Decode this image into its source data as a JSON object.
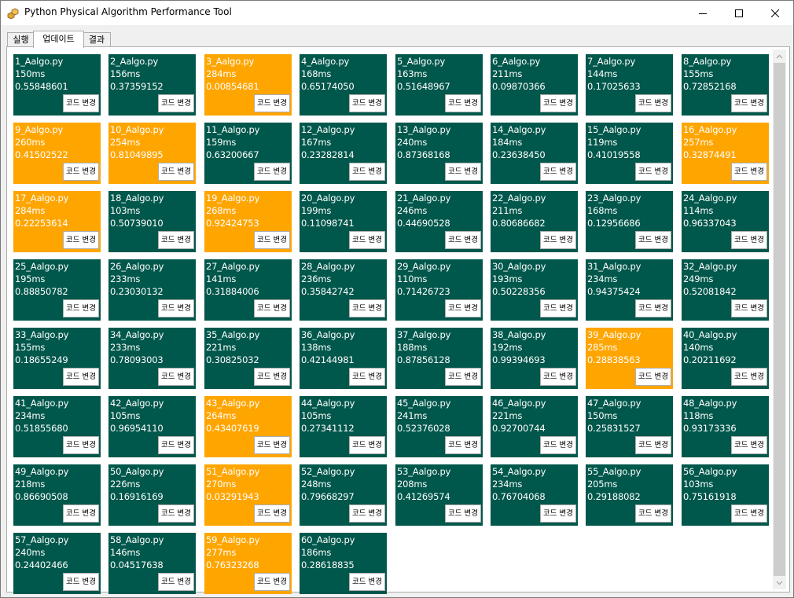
{
  "window": {
    "title": "Python Physical Algorithm Performance Tool"
  },
  "tabs": [
    {
      "label": "실행",
      "active": false
    },
    {
      "label": "업데이트",
      "active": true
    },
    {
      "label": "결과",
      "active": false
    }
  ],
  "colors": {
    "normal": "#00574b",
    "highlight": "#ffa500"
  },
  "button_label": "코드 변경",
  "cards": [
    {
      "name": "1_Aalgo.py",
      "time": "150ms",
      "score": "0.55848601",
      "highlight": false
    },
    {
      "name": "2_Aalgo.py",
      "time": "156ms",
      "score": "0.37359152",
      "highlight": false
    },
    {
      "name": "3_Aalgo.py",
      "time": "284ms",
      "score": "0.00854681",
      "highlight": true
    },
    {
      "name": "4_Aalgo.py",
      "time": "168ms",
      "score": "0.65174050",
      "highlight": false
    },
    {
      "name": "5_Aalgo.py",
      "time": "163ms",
      "score": "0.51648967",
      "highlight": false
    },
    {
      "name": "6_Aalgo.py",
      "time": "211ms",
      "score": "0.09870366",
      "highlight": false
    },
    {
      "name": "7_Aalgo.py",
      "time": "144ms",
      "score": "0.17025633",
      "highlight": false
    },
    {
      "name": "8_Aalgo.py",
      "time": "155ms",
      "score": "0.72852168",
      "highlight": false
    },
    {
      "name": "9_Aalgo.py",
      "time": "260ms",
      "score": "0.41502522",
      "highlight": true
    },
    {
      "name": "10_Aalgo.py",
      "time": "254ms",
      "score": "0.81049895",
      "highlight": true
    },
    {
      "name": "11_Aalgo.py",
      "time": "159ms",
      "score": "0.63200667",
      "highlight": false
    },
    {
      "name": "12_Aalgo.py",
      "time": "167ms",
      "score": "0.23282814",
      "highlight": false
    },
    {
      "name": "13_Aalgo.py",
      "time": "240ms",
      "score": "0.87368168",
      "highlight": false
    },
    {
      "name": "14_Aalgo.py",
      "time": "184ms",
      "score": "0.23638450",
      "highlight": false
    },
    {
      "name": "15_Aalgo.py",
      "time": "119ms",
      "score": "0.41019558",
      "highlight": false
    },
    {
      "name": "16_Aalgo.py",
      "time": "257ms",
      "score": "0.32874491",
      "highlight": true
    },
    {
      "name": "17_Aalgo.py",
      "time": "284ms",
      "score": "0.22253614",
      "highlight": true
    },
    {
      "name": "18_Aalgo.py",
      "time": "103ms",
      "score": "0.50739010",
      "highlight": false
    },
    {
      "name": "19_Aalgo.py",
      "time": "268ms",
      "score": "0.92424753",
      "highlight": true
    },
    {
      "name": "20_Aalgo.py",
      "time": "199ms",
      "score": "0.11098741",
      "highlight": false
    },
    {
      "name": "21_Aalgo.py",
      "time": "246ms",
      "score": "0.44690528",
      "highlight": false
    },
    {
      "name": "22_Aalgo.py",
      "time": "211ms",
      "score": "0.80686682",
      "highlight": false
    },
    {
      "name": "23_Aalgo.py",
      "time": "168ms",
      "score": "0.12956686",
      "highlight": false
    },
    {
      "name": "24_Aalgo.py",
      "time": "114ms",
      "score": "0.96337043",
      "highlight": false
    },
    {
      "name": "25_Aalgo.py",
      "time": "195ms",
      "score": "0.88850782",
      "highlight": false
    },
    {
      "name": "26_Aalgo.py",
      "time": "233ms",
      "score": "0.23030132",
      "highlight": false
    },
    {
      "name": "27_Aalgo.py",
      "time": "141ms",
      "score": "0.31884006",
      "highlight": false
    },
    {
      "name": "28_Aalgo.py",
      "time": "236ms",
      "score": "0.35842742",
      "highlight": false
    },
    {
      "name": "29_Aalgo.py",
      "time": "110ms",
      "score": "0.71426723",
      "highlight": false
    },
    {
      "name": "30_Aalgo.py",
      "time": "193ms",
      "score": "0.50228356",
      "highlight": false
    },
    {
      "name": "31_Aalgo.py",
      "time": "234ms",
      "score": "0.94375424",
      "highlight": false
    },
    {
      "name": "32_Aalgo.py",
      "time": "249ms",
      "score": "0.52081842",
      "highlight": false
    },
    {
      "name": "33_Aalgo.py",
      "time": "155ms",
      "score": "0.18655249",
      "highlight": false
    },
    {
      "name": "34_Aalgo.py",
      "time": "233ms",
      "score": "0.78093003",
      "highlight": false
    },
    {
      "name": "35_Aalgo.py",
      "time": "221ms",
      "score": "0.30825032",
      "highlight": false
    },
    {
      "name": "36_Aalgo.py",
      "time": "138ms",
      "score": "0.42144981",
      "highlight": false
    },
    {
      "name": "37_Aalgo.py",
      "time": "188ms",
      "score": "0.87856128",
      "highlight": false
    },
    {
      "name": "38_Aalgo.py",
      "time": "192ms",
      "score": "0.99394693",
      "highlight": false
    },
    {
      "name": "39_Aalgo.py",
      "time": "285ms",
      "score": "0.28838563",
      "highlight": true
    },
    {
      "name": "40_Aalgo.py",
      "time": "140ms",
      "score": "0.20211692",
      "highlight": false
    },
    {
      "name": "41_Aalgo.py",
      "time": "234ms",
      "score": "0.51855680",
      "highlight": false
    },
    {
      "name": "42_Aalgo.py",
      "time": "105ms",
      "score": "0.96954110",
      "highlight": false
    },
    {
      "name": "43_Aalgo.py",
      "time": "264ms",
      "score": "0.43407619",
      "highlight": true
    },
    {
      "name": "44_Aalgo.py",
      "time": "105ms",
      "score": "0.27341112",
      "highlight": false
    },
    {
      "name": "45_Aalgo.py",
      "time": "241ms",
      "score": "0.52376028",
      "highlight": false
    },
    {
      "name": "46_Aalgo.py",
      "time": "221ms",
      "score": "0.92700744",
      "highlight": false
    },
    {
      "name": "47_Aalgo.py",
      "time": "150ms",
      "score": "0.25831527",
      "highlight": false
    },
    {
      "name": "48_Aalgo.py",
      "time": "118ms",
      "score": "0.93173336",
      "highlight": false
    },
    {
      "name": "49_Aalgo.py",
      "time": "218ms",
      "score": "0.86690508",
      "highlight": false
    },
    {
      "name": "50_Aalgo.py",
      "time": "226ms",
      "score": "0.16916169",
      "highlight": false
    },
    {
      "name": "51_Aalgo.py",
      "time": "270ms",
      "score": "0.03291943",
      "highlight": true
    },
    {
      "name": "52_Aalgo.py",
      "time": "248ms",
      "score": "0.79668297",
      "highlight": false
    },
    {
      "name": "53_Aalgo.py",
      "time": "208ms",
      "score": "0.41269574",
      "highlight": false
    },
    {
      "name": "54_Aalgo.py",
      "time": "234ms",
      "score": "0.76704068",
      "highlight": false
    },
    {
      "name": "55_Aalgo.py",
      "time": "205ms",
      "score": "0.29188082",
      "highlight": false
    },
    {
      "name": "56_Aalgo.py",
      "time": "103ms",
      "score": "0.75161918",
      "highlight": false
    },
    {
      "name": "57_Aalgo.py",
      "time": "240ms",
      "score": "0.24402466",
      "highlight": false
    },
    {
      "name": "58_Aalgo.py",
      "time": "146ms",
      "score": "0.04517638",
      "highlight": false
    },
    {
      "name": "59_Aalgo.py",
      "time": "277ms",
      "score": "0.76323268",
      "highlight": true
    },
    {
      "name": "60_Aalgo.py",
      "time": "186ms",
      "score": "0.28618835",
      "highlight": false
    }
  ]
}
